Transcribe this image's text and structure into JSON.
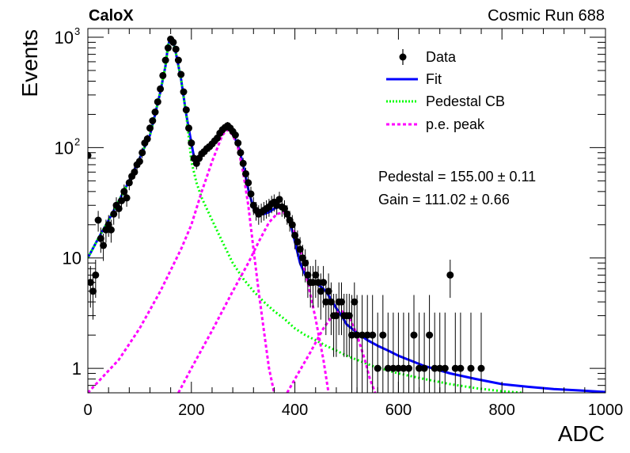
{
  "header": {
    "experiment": "CaloX",
    "run_label": "Cosmic Run 688"
  },
  "legend": {
    "data_label": "Data",
    "fit_label": "Fit",
    "pedestal_label": "Pedestal CB",
    "pe_label": "p.e. peak"
  },
  "fit_results": {
    "pedestal_text": "Pedestal = 155.00 ± 0.11",
    "gain_text": "Gain = 111.02 ± 0.66"
  },
  "colors": {
    "data": "#000000",
    "fit": "#0000ff",
    "pedestal": "#00ff00",
    "pe_peak": "#ff00ff"
  },
  "chart_data": {
    "type": "scatter",
    "xlabel": "ADC",
    "ylabel": "Events",
    "xlim": [
      0,
      1000
    ],
    "ylim": [
      0.6,
      1200
    ],
    "y_scale": "log",
    "x_ticks": [
      "0",
      "200",
      "400",
      "600",
      "800",
      "1000"
    ],
    "y_ticks": [
      {
        "value": 1,
        "label": "1"
      },
      {
        "value": 10,
        "label": "10"
      },
      {
        "value": 100,
        "label": "10",
        "exp": "2"
      },
      {
        "value": 1000,
        "label": "10",
        "exp": "3"
      }
    ],
    "legend_position": "top-right",
    "series": [
      {
        "name": "Data",
        "kind": "points_with_errors",
        "points": [
          [
            0,
            85
          ],
          [
            5,
            6
          ],
          [
            10,
            5
          ],
          [
            15,
            7
          ],
          [
            20,
            22
          ],
          [
            25,
            15
          ],
          [
            30,
            13
          ],
          [
            35,
            18
          ],
          [
            40,
            20
          ],
          [
            45,
            18
          ],
          [
            50,
            25
          ],
          [
            55,
            30
          ],
          [
            60,
            28
          ],
          [
            65,
            33
          ],
          [
            70,
            40
          ],
          [
            75,
            35
          ],
          [
            80,
            48
          ],
          [
            85,
            55
          ],
          [
            90,
            60
          ],
          [
            95,
            70
          ],
          [
            100,
            75
          ],
          [
            105,
            90
          ],
          [
            110,
            110
          ],
          [
            115,
            120
          ],
          [
            120,
            150
          ],
          [
            125,
            175
          ],
          [
            130,
            210
          ],
          [
            135,
            260
          ],
          [
            140,
            340
          ],
          [
            145,
            450
          ],
          [
            150,
            620
          ],
          [
            155,
            800
          ],
          [
            160,
            960
          ],
          [
            165,
            900
          ],
          [
            170,
            780
          ],
          [
            175,
            620
          ],
          [
            180,
            460
          ],
          [
            185,
            320
          ],
          [
            190,
            220
          ],
          [
            195,
            150
          ],
          [
            200,
            110
          ],
          [
            205,
            80
          ],
          [
            210,
            72
          ],
          [
            215,
            80
          ],
          [
            220,
            88
          ],
          [
            225,
            92
          ],
          [
            230,
            98
          ],
          [
            235,
            102
          ],
          [
            240,
            108
          ],
          [
            245,
            115
          ],
          [
            250,
            122
          ],
          [
            255,
            135
          ],
          [
            260,
            145
          ],
          [
            265,
            152
          ],
          [
            270,
            158
          ],
          [
            275,
            150
          ],
          [
            280,
            140
          ],
          [
            285,
            130
          ],
          [
            290,
            110
          ],
          [
            295,
            90
          ],
          [
            300,
            72
          ],
          [
            305,
            58
          ],
          [
            310,
            48
          ],
          [
            315,
            38
          ],
          [
            320,
            30
          ],
          [
            325,
            27
          ],
          [
            330,
            25
          ],
          [
            335,
            26
          ],
          [
            340,
            27
          ],
          [
            345,
            28
          ],
          [
            350,
            29
          ],
          [
            355,
            31
          ],
          [
            360,
            32
          ],
          [
            365,
            30
          ],
          [
            370,
            34
          ],
          [
            375,
            29
          ],
          [
            380,
            28
          ],
          [
            385,
            25
          ],
          [
            390,
            22
          ],
          [
            395,
            20
          ],
          [
            400,
            16
          ],
          [
            405,
            14
          ],
          [
            410,
            12
          ],
          [
            415,
            10
          ],
          [
            420,
            9
          ],
          [
            425,
            7
          ],
          [
            430,
            6
          ],
          [
            435,
            6
          ],
          [
            440,
            7
          ],
          [
            445,
            6
          ],
          [
            450,
            5
          ],
          [
            455,
            6
          ],
          [
            460,
            4
          ],
          [
            465,
            5
          ],
          [
            470,
            4
          ],
          [
            475,
            3
          ],
          [
            480,
            3
          ],
          [
            485,
            4
          ],
          [
            490,
            4
          ],
          [
            495,
            3
          ],
          [
            500,
            3
          ],
          [
            505,
            3
          ],
          [
            510,
            2
          ],
          [
            515,
            4
          ],
          [
            520,
            2
          ],
          [
            530,
            2
          ],
          [
            540,
            2
          ],
          [
            550,
            2
          ],
          [
            560,
            1
          ],
          [
            570,
            2
          ],
          [
            580,
            1
          ],
          [
            590,
            1
          ],
          [
            600,
            1
          ],
          [
            610,
            1
          ],
          [
            620,
            1
          ],
          [
            630,
            2
          ],
          [
            640,
            1
          ],
          [
            650,
            1
          ],
          [
            660,
            2
          ],
          [
            670,
            1
          ],
          [
            680,
            1
          ],
          [
            690,
            1
          ],
          [
            700,
            7
          ],
          [
            710,
            1
          ],
          [
            720,
            1
          ],
          [
            740,
            1
          ],
          [
            760,
            1
          ]
        ]
      },
      {
        "name": "Fit",
        "kind": "line",
        "points": [
          [
            0,
            10
          ],
          [
            20,
            15
          ],
          [
            40,
            22
          ],
          [
            60,
            33
          ],
          [
            80,
            50
          ],
          [
            100,
            80
          ],
          [
            120,
            130
          ],
          [
            130,
            200
          ],
          [
            140,
            320
          ],
          [
            150,
            550
          ],
          [
            155,
            850
          ],
          [
            160,
            980
          ],
          [
            165,
            900
          ],
          [
            170,
            720
          ],
          [
            180,
            420
          ],
          [
            190,
            200
          ],
          [
            200,
            110
          ],
          [
            205,
            82
          ],
          [
            210,
            80
          ],
          [
            220,
            90
          ],
          [
            240,
            110
          ],
          [
            260,
            140
          ],
          [
            270,
            150
          ],
          [
            280,
            135
          ],
          [
            290,
            105
          ],
          [
            300,
            70
          ],
          [
            310,
            42
          ],
          [
            320,
            28
          ],
          [
            330,
            25
          ],
          [
            340,
            25
          ],
          [
            350,
            26
          ],
          [
            360,
            28
          ],
          [
            370,
            29
          ],
          [
            380,
            28
          ],
          [
            390,
            22
          ],
          [
            400,
            14
          ],
          [
            410,
            9
          ],
          [
            420,
            7
          ],
          [
            430,
            6
          ],
          [
            440,
            6
          ],
          [
            450,
            5.5
          ],
          [
            460,
            5
          ],
          [
            470,
            4.2
          ],
          [
            480,
            3.5
          ],
          [
            490,
            3
          ],
          [
            500,
            2.5
          ],
          [
            520,
            2.1
          ],
          [
            540,
            1.8
          ],
          [
            560,
            1.6
          ],
          [
            580,
            1.45
          ],
          [
            600,
            1.3
          ],
          [
            650,
            1.05
          ],
          [
            700,
            0.9
          ],
          [
            750,
            0.8
          ],
          [
            800,
            0.72
          ],
          [
            850,
            0.68
          ],
          [
            900,
            0.65
          ],
          [
            950,
            0.63
          ],
          [
            1000,
            0.61
          ]
        ]
      },
      {
        "name": "Pedestal CB",
        "kind": "dashed_line",
        "points": [
          [
            0,
            10
          ],
          [
            20,
            15
          ],
          [
            40,
            22
          ],
          [
            60,
            33
          ],
          [
            80,
            50
          ],
          [
            100,
            80
          ],
          [
            120,
            130
          ],
          [
            130,
            200
          ],
          [
            140,
            320
          ],
          [
            150,
            550
          ],
          [
            155,
            850
          ],
          [
            160,
            980
          ],
          [
            165,
            900
          ],
          [
            170,
            720
          ],
          [
            180,
            420
          ],
          [
            190,
            200
          ],
          [
            200,
            75
          ],
          [
            210,
            48
          ],
          [
            220,
            35
          ],
          [
            240,
            22
          ],
          [
            260,
            14
          ],
          [
            280,
            9
          ],
          [
            300,
            6.5
          ],
          [
            320,
            5
          ],
          [
            340,
            4
          ],
          [
            360,
            3.3
          ],
          [
            380,
            2.8
          ],
          [
            400,
            2.3
          ],
          [
            420,
            2
          ],
          [
            440,
            1.8
          ],
          [
            460,
            1.6
          ],
          [
            480,
            1.45
          ],
          [
            500,
            1.3
          ],
          [
            550,
            1.05
          ],
          [
            600,
            0.9
          ],
          [
            650,
            0.8
          ],
          [
            700,
            0.72
          ],
          [
            750,
            0.66
          ],
          [
            800,
            0.62
          ],
          [
            840,
            0.6
          ]
        ]
      },
      {
        "name": "p.e. peak 1",
        "kind": "dashed_line",
        "points": [
          [
            0,
            0.6
          ],
          [
            60,
            1.2
          ],
          [
            100,
            2.3
          ],
          [
            140,
            5
          ],
          [
            180,
            12
          ],
          [
            200,
            20
          ],
          [
            220,
            40
          ],
          [
            240,
            75
          ],
          [
            260,
            130
          ],
          [
            270,
            145
          ],
          [
            280,
            130
          ],
          [
            290,
            100
          ],
          [
            300,
            60
          ],
          [
            310,
            30
          ],
          [
            320,
            12
          ],
          [
            330,
            5
          ],
          [
            340,
            2.2
          ],
          [
            350,
            1
          ],
          [
            360,
            0.6
          ]
        ]
      },
      {
        "name": "p.e. peak 2",
        "kind": "dashed_line",
        "points": [
          [
            175,
            0.6
          ],
          [
            200,
            1
          ],
          [
            240,
            2.2
          ],
          [
            280,
            5
          ],
          [
            310,
            9
          ],
          [
            330,
            14
          ],
          [
            350,
            21
          ],
          [
            365,
            25
          ],
          [
            380,
            26
          ],
          [
            395,
            20
          ],
          [
            410,
            12
          ],
          [
            425,
            6
          ],
          [
            440,
            2.8
          ],
          [
            455,
            1.2
          ],
          [
            465,
            0.6
          ]
        ]
      },
      {
        "name": "p.e. peak 3",
        "kind": "dashed_line",
        "points": [
          [
            385,
            0.6
          ],
          [
            400,
            0.8
          ],
          [
            430,
            1.4
          ],
          [
            455,
            2.3
          ],
          [
            475,
            3.1
          ],
          [
            490,
            3.3
          ],
          [
            505,
            2.9
          ],
          [
            520,
            2
          ],
          [
            535,
            1.2
          ],
          [
            545,
            0.8
          ],
          [
            555,
            0.6
          ]
        ]
      }
    ]
  }
}
